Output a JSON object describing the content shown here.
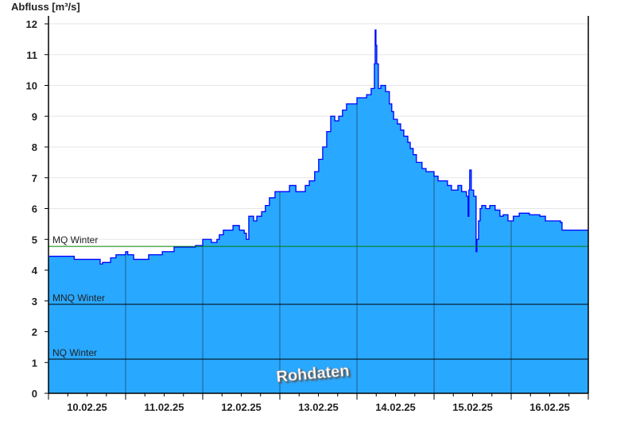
{
  "chart_data": {
    "type": "area",
    "ylabel": "Abfluss [m³/s]",
    "ylim": [
      0,
      12
    ],
    "yticks": [
      "0",
      "1",
      "2",
      "3",
      "4",
      "5",
      "6",
      "7",
      "8",
      "9",
      "10",
      "11",
      "12"
    ],
    "xlim": [
      "10.02.25 00:00",
      "17.02.25 00:00"
    ],
    "xtick_labels": [
      "10.02.25",
      "11.02.25",
      "12.02.25",
      "13.02.25",
      "14.02.25",
      "15.02.25",
      "16.02.25"
    ],
    "grid": true,
    "fill_color": "#29a8ff",
    "line_color": "#0000ff",
    "reference_lines": [
      {
        "name": "MQ Winter",
        "value": 4.77,
        "color": "#008000"
      },
      {
        "name": "MNQ Winter",
        "value": 2.89,
        "color": "#000000"
      },
      {
        "name": "NQ Winter",
        "value": 1.11,
        "color": "#000000"
      }
    ],
    "watermark": "Rohdaten",
    "series": [
      {
        "points": [
          [
            "10.02.25 00:15",
            4.45
          ],
          [
            "10.02.25 08:00",
            4.35
          ],
          [
            "10.02.25 16:05",
            4.2
          ],
          [
            "10.02.25 16:50",
            4.25
          ],
          [
            "10.02.25 19:20",
            4.4
          ],
          [
            "10.02.25 21:00",
            4.5
          ],
          [
            "11.02.25 00:00",
            4.6
          ],
          [
            "11.02.25 00:40",
            4.5
          ],
          [
            "11.02.25 02:30",
            4.35
          ],
          [
            "11.02.25 07:10",
            4.5
          ],
          [
            "11.02.25 11:25",
            4.6
          ],
          [
            "11.02.25 15:05",
            4.75
          ],
          [
            "11.02.25 21:45",
            4.8
          ],
          [
            "12.02.25 00:00",
            5.0
          ],
          [
            "12.02.25 02:40",
            4.9
          ],
          [
            "12.02.25 04:25",
            5.0
          ],
          [
            "12.02.25 05:10",
            5.15
          ],
          [
            "12.02.25 06:25",
            5.3
          ],
          [
            "12.02.25 09:25",
            5.45
          ],
          [
            "12.02.25 11:25",
            5.3
          ],
          [
            "12.02.25 12:55",
            5.2
          ],
          [
            "12.02.25 13:35",
            5.0
          ],
          [
            "12.02.25 14:20",
            5.75
          ],
          [
            "12.02.25 15:50",
            5.6
          ],
          [
            "12.02.25 16:50",
            5.75
          ],
          [
            "12.02.25 18:20",
            5.9
          ],
          [
            "12.02.25 19:30",
            6.1
          ],
          [
            "12.02.25 20:45",
            6.35
          ],
          [
            "12.02.25 22:30",
            6.55
          ],
          [
            "13.02.25 03:00",
            6.75
          ],
          [
            "13.02.25 05:00",
            6.55
          ],
          [
            "13.02.25 07:55",
            6.75
          ],
          [
            "13.02.25 09:10",
            6.9
          ],
          [
            "13.02.25 10:50",
            7.2
          ],
          [
            "13.02.25 12:05",
            7.6
          ],
          [
            "13.02.25 13:20",
            8.0
          ],
          [
            "13.02.25 14:35",
            8.5
          ],
          [
            "13.02.25 15:50",
            9.0
          ],
          [
            "13.02.25 17:05",
            8.85
          ],
          [
            "13.02.25 18:20",
            9.0
          ],
          [
            "13.02.25 19:30",
            9.2
          ],
          [
            "13.02.25 20:45",
            9.4
          ],
          [
            "14.02.25 00:00",
            9.6
          ],
          [
            "14.02.25 03:00",
            9.7
          ],
          [
            "14.02.25 04:25",
            9.9
          ],
          [
            "14.02.25 05:25",
            10.7
          ],
          [
            "14.02.25 05:40",
            11.8
          ],
          [
            "14.02.25 05:55",
            11.3
          ],
          [
            "14.02.25 06:10",
            10.7
          ],
          [
            "14.02.25 06:40",
            9.9
          ],
          [
            "14.02.25 07:25",
            10.0
          ],
          [
            "14.02.25 08:55",
            9.8
          ],
          [
            "14.02.25 10:05",
            9.4
          ],
          [
            "14.02.25 10:50",
            9.15
          ],
          [
            "14.02.25 11:25",
            8.9
          ],
          [
            "14.02.25 12:35",
            8.75
          ],
          [
            "14.02.25 13:35",
            8.55
          ],
          [
            "14.02.25 14:35",
            8.35
          ],
          [
            "14.02.25 15:50",
            8.15
          ],
          [
            "14.02.25 16:35",
            7.95
          ],
          [
            "14.02.25 17:30",
            7.75
          ],
          [
            "14.02.25 18:30",
            7.5
          ],
          [
            "14.02.25 20:15",
            7.3
          ],
          [
            "14.02.25 21:30",
            7.2
          ],
          [
            "15.02.25 00:00",
            7.05
          ],
          [
            "15.02.25 01:15",
            6.9
          ],
          [
            "15.02.25 04:10",
            6.75
          ],
          [
            "15.02.25 05:25",
            6.6
          ],
          [
            "15.02.25 07:25",
            6.75
          ],
          [
            "15.02.25 08:35",
            6.55
          ],
          [
            "15.02.25 10:05",
            6.4
          ],
          [
            "15.02.25 10:35",
            5.75
          ],
          [
            "15.02.25 10:50",
            6.6
          ],
          [
            "15.02.25 11:05",
            7.25
          ],
          [
            "15.02.25 11:35",
            6.6
          ],
          [
            "15.02.25 12:20",
            6.4
          ],
          [
            "15.02.25 13:05",
            4.6
          ],
          [
            "15.02.25 13:20",
            5.0
          ],
          [
            "15.02.25 13:50",
            5.6
          ],
          [
            "15.02.25 14:20",
            6.0
          ],
          [
            "15.02.25 14:50",
            6.1
          ],
          [
            "15.02.25 16:05",
            6.0
          ],
          [
            "15.02.25 17:20",
            6.1
          ],
          [
            "15.02.25 19:00",
            5.95
          ],
          [
            "15.02.25 20:30",
            5.75
          ],
          [
            "15.02.25 21:30",
            5.8
          ],
          [
            "15.02.25 23:00",
            5.6
          ],
          [
            "16.02.25 00:40",
            5.75
          ],
          [
            "16.02.25 02:30",
            5.85
          ],
          [
            "16.02.25 05:40",
            5.8
          ],
          [
            "16.02.25 08:55",
            5.75
          ],
          [
            "16.02.25 10:40",
            5.6
          ],
          [
            "16.02.25 15:20",
            5.55
          ],
          [
            "16.02.25 15:50",
            5.3
          ],
          [
            "17.02.25 00:00",
            5.3
          ]
        ]
      }
    ]
  }
}
